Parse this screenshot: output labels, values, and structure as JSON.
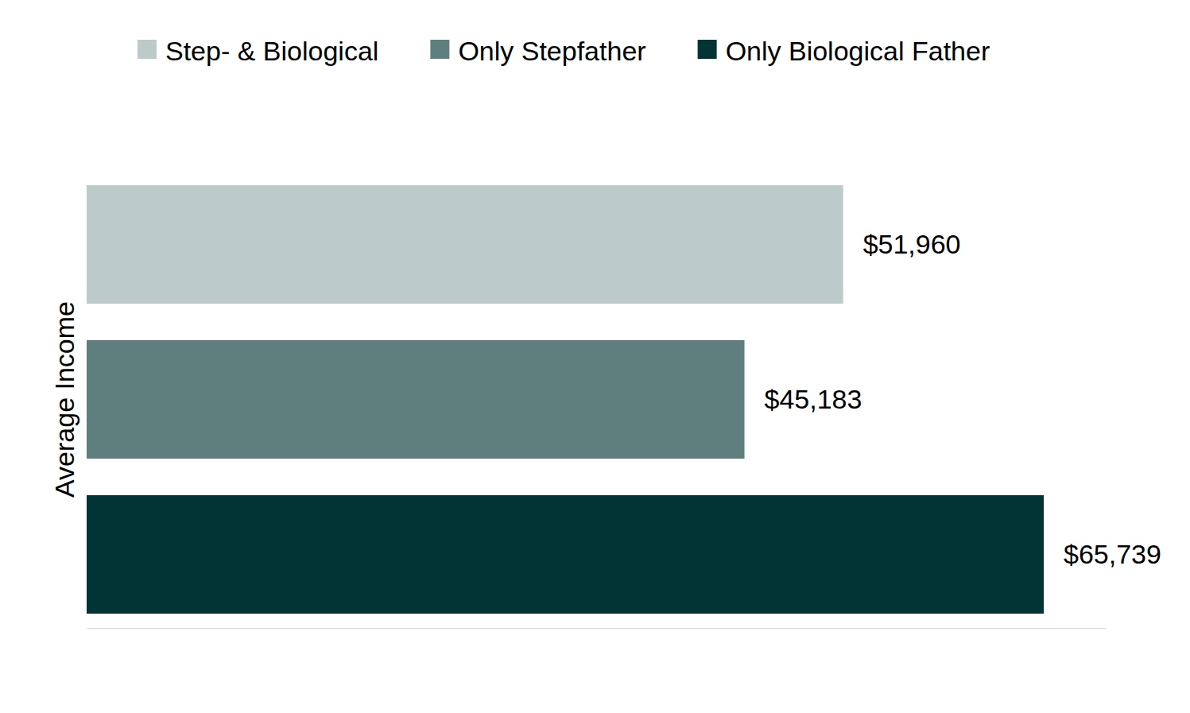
{
  "chart_data": {
    "type": "bar",
    "orientation": "horizontal",
    "y_label": "Average Income",
    "categories": [
      "Step- & Biological",
      "Only Stepfather",
      "Only Biological Father"
    ],
    "values": [
      51960,
      45183,
      65739
    ],
    "value_labels": [
      "$51,960",
      "$45,183",
      "$65,739"
    ],
    "colors": [
      "#bccbca",
      "#5e7f7d",
      "#023436"
    ],
    "xlim": [
      0,
      70000
    ],
    "xticks": [],
    "legend": "top",
    "data_labels": true,
    "tick_labels": false,
    "grid": false
  }
}
